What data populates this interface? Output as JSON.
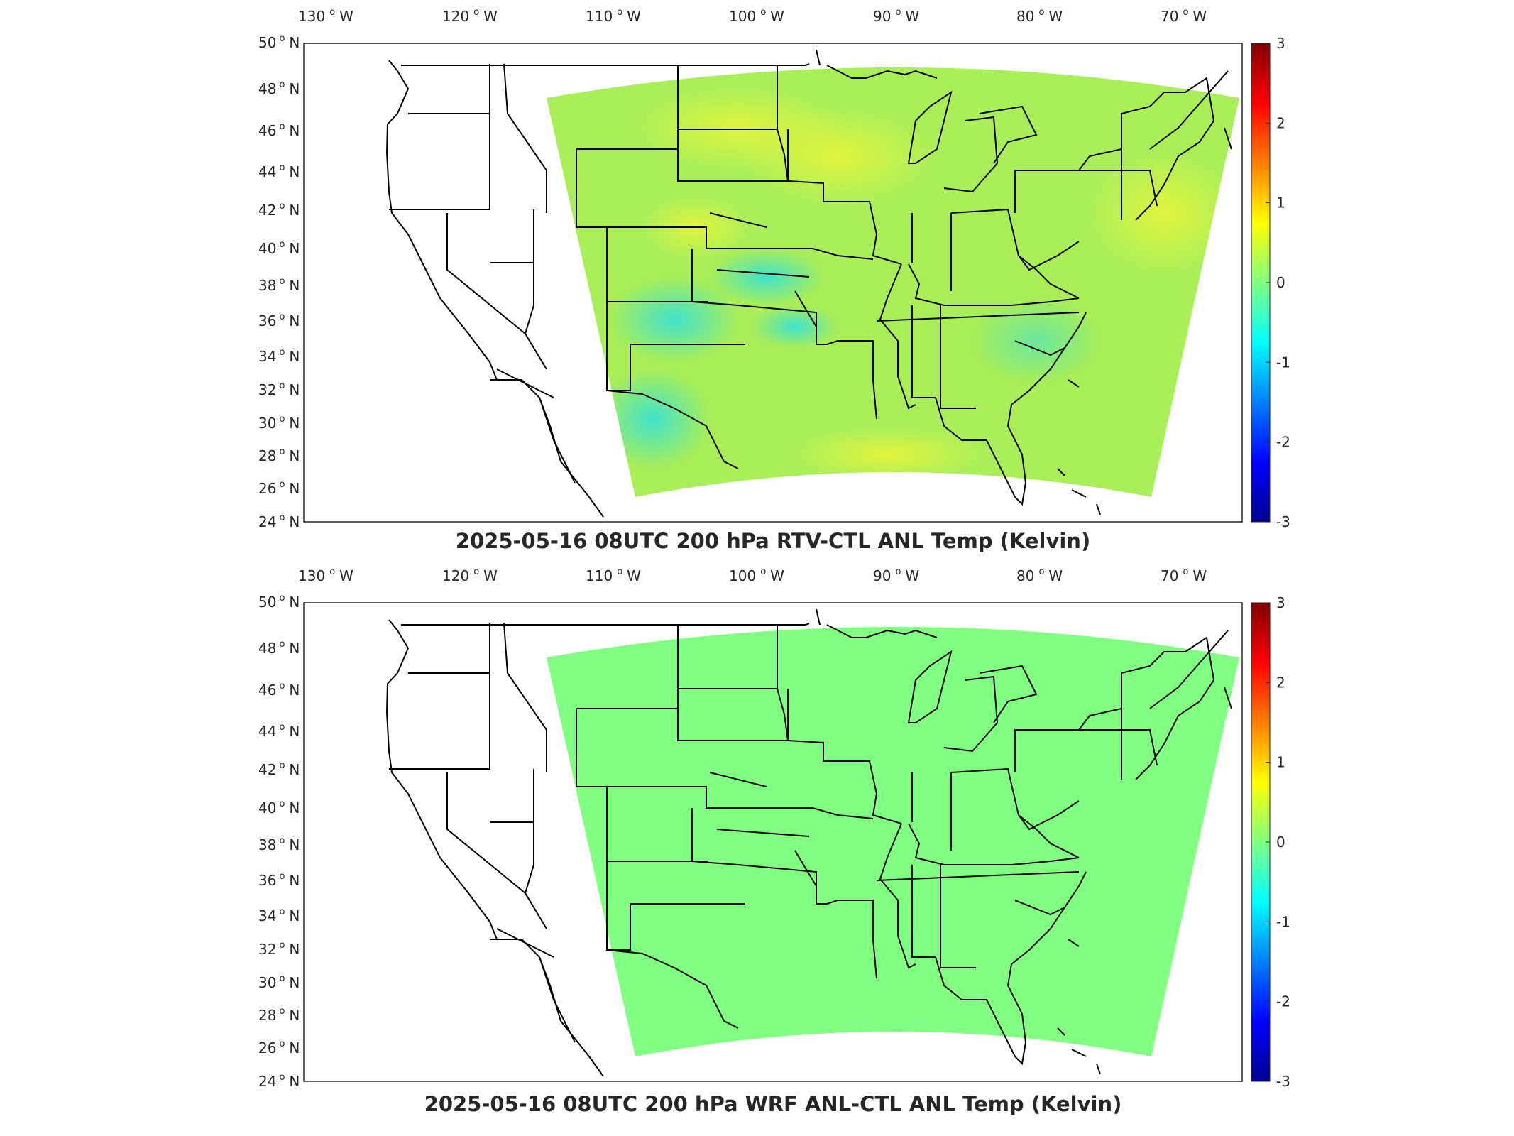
{
  "panels": [
    {
      "title": "2025-05-16 08UTC 200 hPa RTV-CTL ANL Temp (Kelvin)",
      "variant": "rtv",
      "lon_labels": [
        "130",
        "120",
        "110",
        "100",
        "90",
        "80",
        "70"
      ],
      "lon_suffix": "W",
      "lat_labels": [
        "50",
        "48",
        "46",
        "44",
        "42",
        "40",
        "38",
        "36",
        "34",
        "32",
        "30",
        "28",
        "26",
        "24"
      ],
      "lat_suffix": "N",
      "colorbar_ticks": [
        "3",
        "2",
        "1",
        "0",
        "-1",
        "-2",
        "-3"
      ]
    },
    {
      "title": "2025-05-16 08UTC 200 hPa WRF ANL-CTL ANL Temp (Kelvin)",
      "variant": "wrf",
      "lon_labels": [
        "130",
        "120",
        "110",
        "100",
        "90",
        "80",
        "70"
      ],
      "lon_suffix": "W",
      "lat_labels": [
        "50",
        "48",
        "46",
        "44",
        "42",
        "40",
        "38",
        "36",
        "34",
        "32",
        "30",
        "28",
        "26",
        "24"
      ],
      "lat_suffix": "N",
      "colorbar_ticks": [
        "3",
        "2",
        "1",
        "0",
        "-1",
        "-2",
        "-3"
      ]
    }
  ],
  "colorbar_range": [
    -3,
    3
  ],
  "colors": {
    "zero_green": "#80ff80",
    "jet_low": "#00008f",
    "jet_high": "#800000"
  }
}
